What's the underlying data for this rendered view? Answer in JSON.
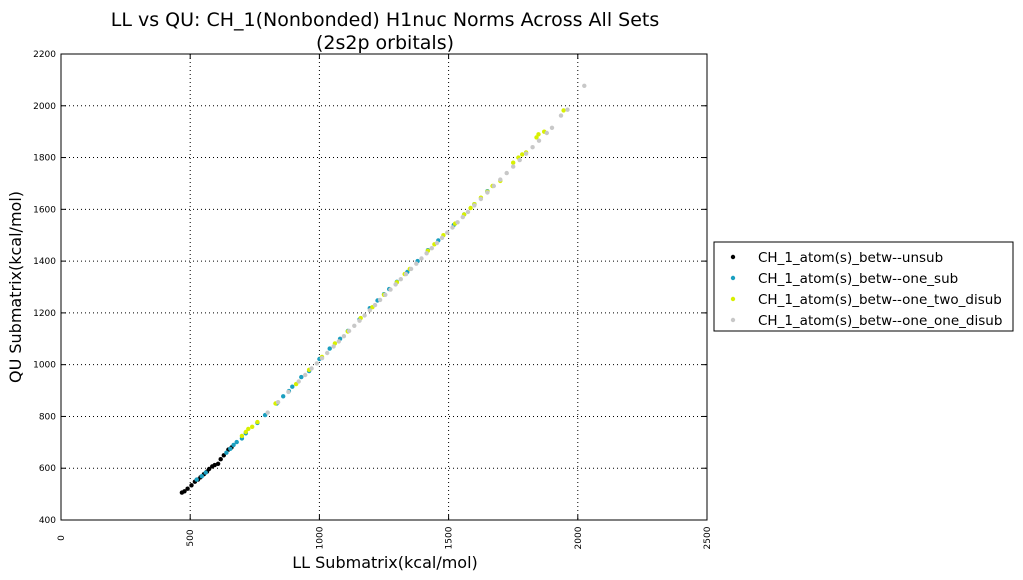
{
  "chart_data": {
    "type": "scatter",
    "title_line1": "LL vs QU: CH_1(Nonbonded) H1nuc Norms Across All Sets",
    "title_line2": "(2s2p orbitals)",
    "xlabel": "LL Submatrix(kcal/mol)",
    "ylabel": "QU Submatrix(kcal/mol)",
    "xlim": [
      0,
      2500
    ],
    "ylim": [
      400,
      2200
    ],
    "xticks": [
      0,
      500,
      1000,
      1500,
      2000,
      2500
    ],
    "yticks": [
      400,
      600,
      800,
      1000,
      1200,
      1400,
      1600,
      1800,
      2000,
      2200
    ],
    "grid": true,
    "legend_position": "center-right outside",
    "series": [
      {
        "name": "CH_1_atom(s)_betw--unsub",
        "color": "#000000",
        "points": [
          [
            468,
            506
          ],
          [
            478,
            511
          ],
          [
            490,
            521
          ],
          [
            505,
            534
          ],
          [
            518,
            548
          ],
          [
            530,
            556
          ],
          [
            540,
            565
          ],
          [
            553,
            577
          ],
          [
            565,
            587
          ],
          [
            573,
            597
          ],
          [
            585,
            607
          ],
          [
            595,
            612
          ],
          [
            608,
            617
          ],
          [
            618,
            635
          ],
          [
            630,
            650
          ],
          [
            648,
            672
          ],
          [
            660,
            680
          ]
        ]
      },
      {
        "name": "CH_1_atom(s)_betw--one_sub",
        "color": "#1a9fc0",
        "points": [
          [
            525,
            556
          ],
          [
            545,
            569
          ],
          [
            560,
            583
          ],
          [
            640,
            660
          ],
          [
            655,
            675
          ],
          [
            668,
            690
          ],
          [
            680,
            701
          ],
          [
            700,
            715
          ],
          [
            715,
            735
          ],
          [
            760,
            775
          ],
          [
            790,
            805
          ],
          [
            835,
            850
          ],
          [
            860,
            878
          ],
          [
            882,
            898
          ],
          [
            895,
            915
          ],
          [
            930,
            952
          ],
          [
            960,
            975
          ],
          [
            1000,
            1022
          ],
          [
            1040,
            1062
          ],
          [
            1080,
            1100
          ],
          [
            1110,
            1130
          ],
          [
            1155,
            1175
          ],
          [
            1195,
            1218
          ],
          [
            1225,
            1248
          ],
          [
            1250,
            1272
          ],
          [
            1270,
            1292
          ],
          [
            1300,
            1320
          ],
          [
            1340,
            1358
          ],
          [
            1380,
            1400
          ],
          [
            1420,
            1442
          ],
          [
            1460,
            1480
          ],
          [
            1520,
            1540
          ],
          [
            1560,
            1580
          ],
          [
            1600,
            1620
          ],
          [
            1650,
            1670
          ]
        ]
      },
      {
        "name": "CH_1_atom(s)_betw--one_two_disub",
        "color": "#d8f000",
        "points": [
          [
            700,
            725
          ],
          [
            715,
            740
          ],
          [
            725,
            752
          ],
          [
            740,
            760
          ],
          [
            760,
            778
          ],
          [
            830,
            850
          ],
          [
            910,
            925
          ],
          [
            960,
            980
          ],
          [
            1010,
            1030
          ],
          [
            1060,
            1082
          ],
          [
            1110,
            1128
          ],
          [
            1160,
            1180
          ],
          [
            1205,
            1222
          ],
          [
            1250,
            1270
          ],
          [
            1300,
            1318
          ],
          [
            1330,
            1350
          ],
          [
            1350,
            1370
          ],
          [
            1420,
            1440
          ],
          [
            1445,
            1465
          ],
          [
            1480,
            1500
          ],
          [
            1525,
            1545
          ],
          [
            1560,
            1580
          ],
          [
            1585,
            1605
          ],
          [
            1600,
            1620
          ],
          [
            1625,
            1645
          ],
          [
            1650,
            1668
          ],
          [
            1670,
            1690
          ],
          [
            1700,
            1710
          ],
          [
            1750,
            1780
          ],
          [
            1770,
            1800
          ],
          [
            1785,
            1812
          ],
          [
            1800,
            1820
          ],
          [
            1840,
            1878
          ],
          [
            1848,
            1890
          ],
          [
            1870,
            1900
          ],
          [
            1945,
            1982
          ]
        ]
      },
      {
        "name": "CH_1_atom(s)_betw--one_one_disub",
        "color": "#c8c8c8",
        "points": [
          [
            800,
            815
          ],
          [
            840,
            855
          ],
          [
            880,
            895
          ],
          [
            920,
            935
          ],
          [
            945,
            960
          ],
          [
            970,
            985
          ],
          [
            990,
            1005
          ],
          [
            1010,
            1025
          ],
          [
            1030,
            1045
          ],
          [
            1055,
            1070
          ],
          [
            1075,
            1090
          ],
          [
            1095,
            1110
          ],
          [
            1115,
            1130
          ],
          [
            1135,
            1150
          ],
          [
            1155,
            1170
          ],
          [
            1175,
            1190
          ],
          [
            1195,
            1210
          ],
          [
            1215,
            1230
          ],
          [
            1235,
            1250
          ],
          [
            1255,
            1270
          ],
          [
            1275,
            1290
          ],
          [
            1295,
            1310
          ],
          [
            1315,
            1330
          ],
          [
            1335,
            1350
          ],
          [
            1355,
            1370
          ],
          [
            1375,
            1390
          ],
          [
            1395,
            1410
          ],
          [
            1415,
            1430
          ],
          [
            1435,
            1450
          ],
          [
            1455,
            1470
          ],
          [
            1475,
            1490
          ],
          [
            1495,
            1510
          ],
          [
            1515,
            1530
          ],
          [
            1535,
            1550
          ],
          [
            1555,
            1570
          ],
          [
            1575,
            1590
          ],
          [
            1600,
            1615
          ],
          [
            1625,
            1640
          ],
          [
            1650,
            1665
          ],
          [
            1675,
            1690
          ],
          [
            1700,
            1715
          ],
          [
            1725,
            1740
          ],
          [
            1750,
            1765
          ],
          [
            1775,
            1790
          ],
          [
            1800,
            1815
          ],
          [
            1825,
            1840
          ],
          [
            1850,
            1865
          ],
          [
            1880,
            1895
          ],
          [
            1900,
            1915
          ],
          [
            1935,
            1962
          ],
          [
            1960,
            1985
          ],
          [
            2025,
            2077
          ]
        ]
      }
    ]
  }
}
